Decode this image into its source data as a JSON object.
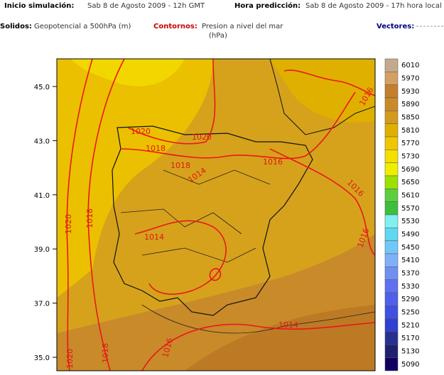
{
  "header": {
    "init_label": "Inicio simulación:",
    "init_value": "Sab 8 de Agosto 2009 - 12h GMT",
    "pred_label": "Hora predicción:",
    "pred_value": "Sab 8 de Agosto 2009 - 17h hora local"
  },
  "legend": {
    "solids_label": "Solidos:",
    "solids_value": "Geopotencial a 500hPa (m)",
    "contours_label": "Contornos:",
    "contours_value": "Presion a nivel del mar",
    "contours_unit": "(hPa)",
    "vectors_label": "Vectores:"
  },
  "map": {
    "lat_labels": [
      "45.0",
      "43.0",
      "41.0",
      "39.0",
      "37.0",
      "35.0"
    ],
    "contour_labels": [
      "1020",
      "1018",
      "1020",
      "1018",
      "1014",
      "1016",
      "1016",
      "1016",
      "1020",
      "1018",
      "1014",
      "1014",
      "1018",
      "1020",
      "1016",
      "1016"
    ]
  },
  "colorbar": {
    "levels": [
      {
        "label": "6010",
        "color": "#c4aa8c"
      },
      {
        "label": "5970",
        "color": "#d3a064"
      },
      {
        "label": "5930",
        "color": "#c47f2c"
      },
      {
        "label": "5890",
        "color": "#c98a2a"
      },
      {
        "label": "5850",
        "color": "#d49a1e"
      },
      {
        "label": "5810",
        "color": "#e0b000"
      },
      {
        "label": "5770",
        "color": "#efc600"
      },
      {
        "label": "5730",
        "color": "#f5df00"
      },
      {
        "label": "5690",
        "color": "#eeee00"
      },
      {
        "label": "5650",
        "color": "#9ee000"
      },
      {
        "label": "5610",
        "color": "#5ccf3c"
      },
      {
        "label": "5570",
        "color": "#3cbf3c"
      },
      {
        "label": "5530",
        "color": "#80f0f0"
      },
      {
        "label": "5490",
        "color": "#60d8f0"
      },
      {
        "label": "5450",
        "color": "#70c8f8"
      },
      {
        "label": "5410",
        "color": "#80b0f8"
      },
      {
        "label": "5370",
        "color": "#7090f0"
      },
      {
        "label": "5330",
        "color": "#6070f0"
      },
      {
        "label": "5290",
        "color": "#5060e8"
      },
      {
        "label": "5250",
        "color": "#4050e0"
      },
      {
        "label": "5210",
        "color": "#3040d0"
      },
      {
        "label": "5170",
        "color": "#283090"
      },
      {
        "label": "5130",
        "color": "#202070"
      },
      {
        "label": "5090",
        "color": "#100060"
      }
    ]
  }
}
